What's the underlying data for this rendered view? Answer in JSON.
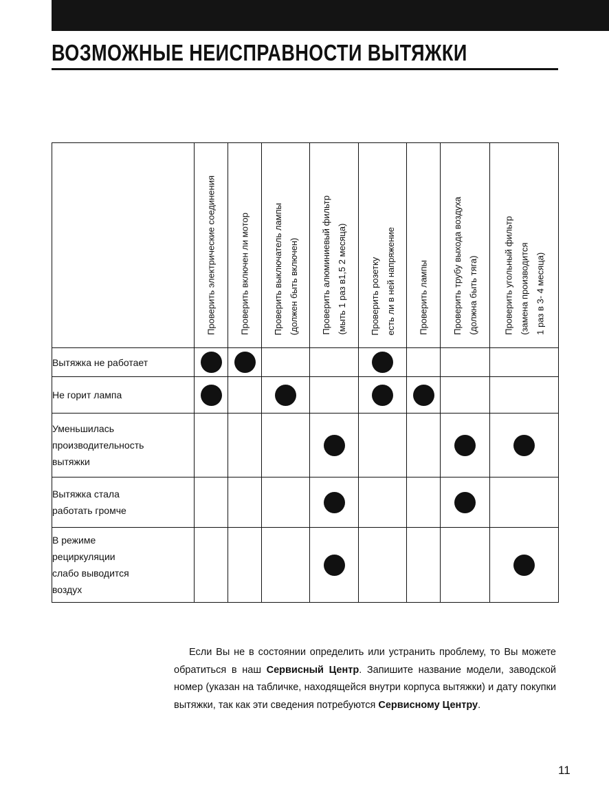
{
  "header": {
    "title": "ВОЗМОЖНЫЕ НЕИСПРАВНОСТИ ВЫТЯЖКИ"
  },
  "table": {
    "columns": [
      [
        "Проверить электрические соединения"
      ],
      [
        "Проверить включен ли мотор"
      ],
      [
        "Проверить выключатель лампы",
        "(должен быть включен)"
      ],
      [
        "Проверить алюминиевый фильтр",
        "(мыть 1 раз в1,5  2 месяца)"
      ],
      [
        "Проверить розетку",
        "есть ли в ней напряжение"
      ],
      [
        "Проверить лампы"
      ],
      [
        "Проверить трубу выхода воздуха",
        "(должна быть тяга)"
      ],
      [
        "Проверить угольный фильтр",
        "(замена производится",
        "1 раз в 3- 4 месяца)"
      ]
    ],
    "rows": [
      {
        "label": [
          "Вытяжка не работает"
        ],
        "checks": [
          true,
          true,
          false,
          false,
          true,
          false,
          false,
          false
        ]
      },
      {
        "label": [
          "Не горит лампа"
        ],
        "checks": [
          true,
          false,
          true,
          false,
          true,
          true,
          false,
          false
        ]
      },
      {
        "label": [
          "Уменьшилась",
          "производительность",
          "вытяжки"
        ],
        "checks": [
          false,
          false,
          false,
          true,
          false,
          false,
          true,
          true
        ]
      },
      {
        "label": [
          "Вытяжка стала",
          "работать громче"
        ],
        "checks": [
          false,
          false,
          false,
          true,
          false,
          false,
          true,
          false
        ]
      },
      {
        "label": [
          "В режиме",
          "рециркуляции",
          "слабо выводится",
          "воздух"
        ],
        "checks": [
          false,
          false,
          false,
          true,
          false,
          false,
          false,
          true
        ]
      }
    ]
  },
  "note": {
    "segments": [
      {
        "text": "Если Вы не в состоянии определить или устранить проблему, то Вы можете обратиться в наш ",
        "bold": false
      },
      {
        "text": "Сервисный Центр",
        "bold": true
      },
      {
        "text": ". Запишите название модели, заводской номер (указан на табличке, находящейся внутри корпуса вытяжки) и дату покупки вытяжки, так как эти сведения потребуются ",
        "bold": false
      },
      {
        "text": "Сервисному Центру",
        "bold": true
      },
      {
        "text": ".",
        "bold": false
      }
    ]
  },
  "page_number": "11"
}
